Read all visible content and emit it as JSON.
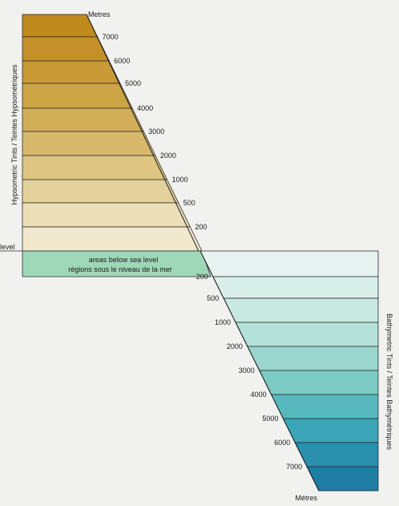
{
  "hypsometric": {
    "unit_label": "Metres",
    "side_title": "Hypsometric Tints  /  Teintes Hypsométriques",
    "labels": [
      "7000",
      "6000",
      "5000",
      "4000",
      "3000",
      "2000",
      "1000",
      "500",
      "200"
    ],
    "colors": [
      "#c08a1e",
      "#c4902a",
      "#c99a36",
      "#cda444",
      "#d2ae58",
      "#d8b96c",
      "#dec581",
      "#e4d29c",
      "#ecdfb8",
      "#f1e8cd"
    ]
  },
  "sea_level": {
    "label": "level",
    "note_line1": "areas below sea level",
    "note_line2": "régions sous le niveau de la mer",
    "color": "#9fd8b8"
  },
  "bathymetric": {
    "unit_label": "Métres",
    "side_title": "Bathymetric Tints  /  Teintes Bathymétriques",
    "labels": [
      "200",
      "500",
      "1000",
      "2000",
      "3000",
      "4000",
      "5000",
      "6000",
      "7000"
    ],
    "colors": [
      "#e6f2ef",
      "#d8efea",
      "#c8e9e2",
      "#b4e1d9",
      "#9ad6cd",
      "#7ccbc4",
      "#57b9bd",
      "#3aa5b6",
      "#2a8fad",
      "#1f7da3"
    ]
  }
}
